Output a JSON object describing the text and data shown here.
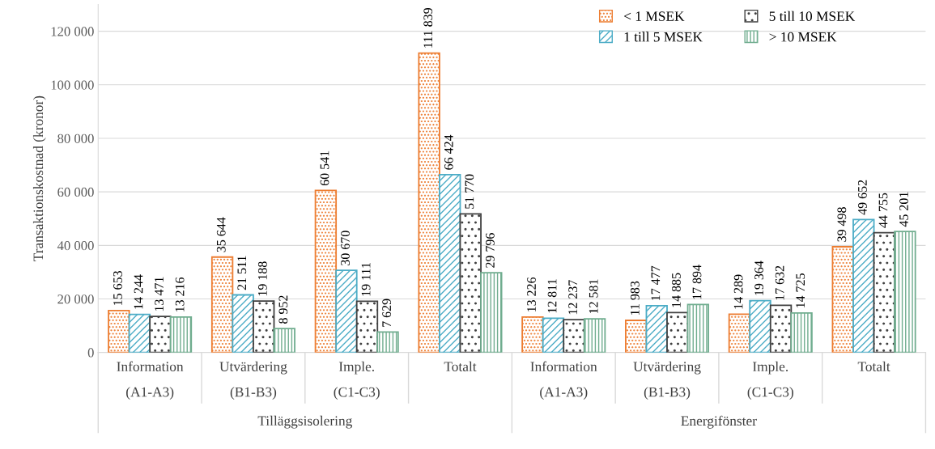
{
  "chart_data": {
    "type": "bar",
    "ylabel": "Transaktionskostnad (kronor)",
    "categories": [
      "Information\n(A1-A3)",
      "Utvärdering\n(B1-B3)",
      "Imple.\n(C1-C3)",
      "Totalt",
      "Information\n(A1-A3)",
      "Utvärdering\n(B1-B3)",
      "Imple.\n(C1-C3)",
      "Totalt"
    ],
    "annotations": [
      "Tilläggsisolering",
      "Energifönster"
    ],
    "series": [
      {
        "name": "< 1 MSEK",
        "color": "#ed7d31",
        "values": [
          15653,
          35644,
          60541,
          111839,
          13226,
          11983,
          14289,
          39498
        ],
        "value_labels": [
          "15 653",
          "35 644",
          "60 541",
          "111 839",
          "13 226",
          "11 983",
          "14 289",
          "39 498"
        ]
      },
      {
        "name": "1 till 5 MSEK",
        "color": "#4bacc6",
        "values": [
          14244,
          21511,
          30670,
          66424,
          12811,
          17477,
          19364,
          49652
        ],
        "value_labels": [
          "14 244",
          "21 511",
          "30 670",
          "66 424",
          "12 811",
          "17 477",
          "19 364",
          "49 652"
        ]
      },
      {
        "name": "5 till 10 MSEK",
        "color": "#404040",
        "values": [
          13471,
          19188,
          19111,
          51770,
          12237,
          14885,
          17632,
          44755
        ],
        "value_labels": [
          "13 471",
          "19 188",
          "19 111",
          "51 770",
          "12 237",
          "14 885",
          "17 632",
          "44 755"
        ]
      },
      {
        "name": "> 10 MSEK",
        "color": "#70ad8f",
        "values": [
          13216,
          8952,
          7629,
          29796,
          12581,
          17894,
          14725,
          45201
        ],
        "value_labels": [
          "13 216",
          "8 952",
          "7 629",
          "29 796",
          "12 581",
          "17 894",
          "14 725",
          "45 201"
        ]
      }
    ],
    "ylim": [
      0,
      130000
    ],
    "yticks": [
      {
        "value": 0,
        "label": "0"
      },
      {
        "value": 20000,
        "label": "20 000"
      },
      {
        "value": 40000,
        "label": "40 000"
      },
      {
        "value": 60000,
        "label": "60 000"
      },
      {
        "value": 80000,
        "label": "80 000"
      },
      {
        "value": 100000,
        "label": "100 000"
      },
      {
        "value": 120000,
        "label": "120 000"
      }
    ],
    "grid": "y",
    "legend": "top right"
  }
}
